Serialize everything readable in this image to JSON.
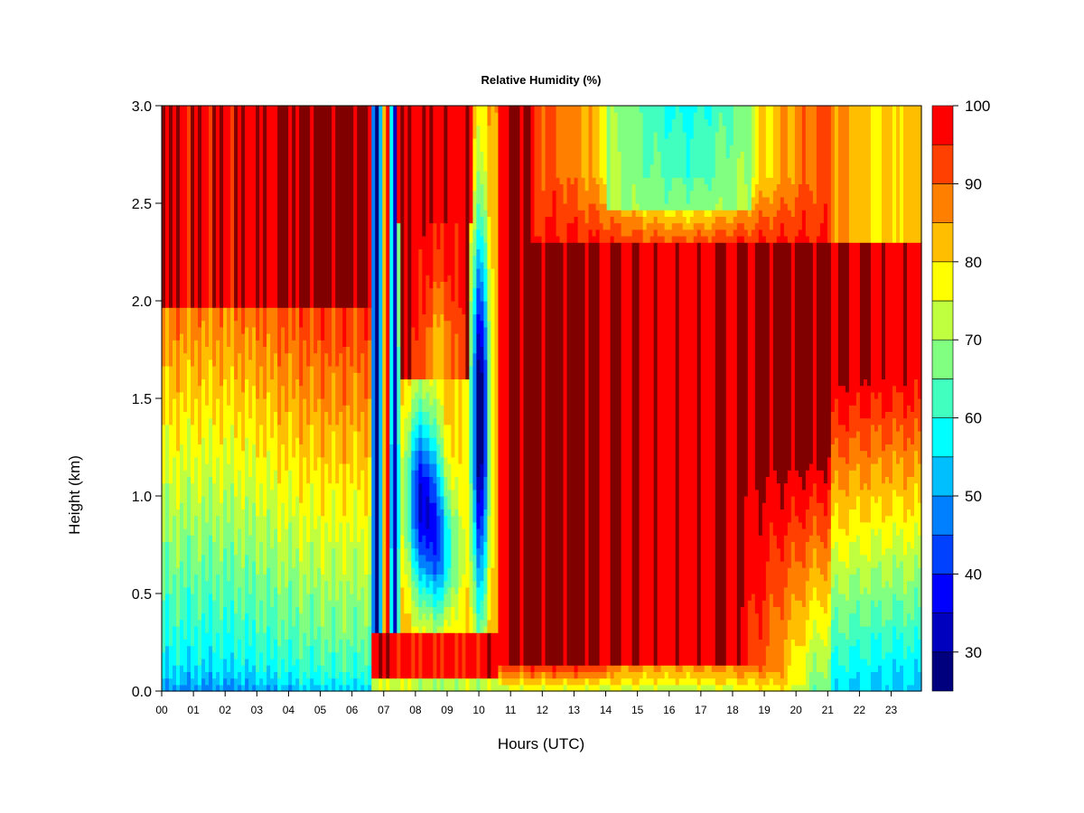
{
  "chart_data": {
    "type": "heatmap",
    "title": "Relative Humidity (%)",
    "xlabel": "Hours (UTC)",
    "ylabel": "Height (km)",
    "x_ticks": [
      "00",
      "01",
      "02",
      "03",
      "04",
      "05",
      "06",
      "07",
      "08",
      "09",
      "10",
      "11",
      "12",
      "13",
      "14",
      "15",
      "16",
      "17",
      "18",
      "19",
      "20",
      "21",
      "22",
      "23"
    ],
    "x_range": [
      0,
      24
    ],
    "y_ticks": [
      "0.0",
      "0.5",
      "1.0",
      "1.5",
      "2.0",
      "2.5",
      "3.0"
    ],
    "y_range": [
      0,
      3.0
    ],
    "colorbar": {
      "ticks": [
        "30",
        "40",
        "50",
        "60",
        "70",
        "80",
        "90",
        "100"
      ],
      "range": [
        25,
        100
      ],
      "levels": [
        25,
        30,
        35,
        40,
        45,
        50,
        55,
        60,
        65,
        70,
        75,
        80,
        85,
        90,
        95,
        100
      ],
      "colors": [
        "#00007f",
        "#0000bf",
        "#0000ff",
        "#0040ff",
        "#0080ff",
        "#00bfff",
        "#00ffff",
        "#40ffbf",
        "#80ff80",
        "#bfff40",
        "#ffff00",
        "#ffbf00",
        "#ff8000",
        "#ff4000",
        "#ff0000",
        "#bf0000",
        "#800000"
      ]
    },
    "grid": false,
    "description_of_pattern": ""
  }
}
